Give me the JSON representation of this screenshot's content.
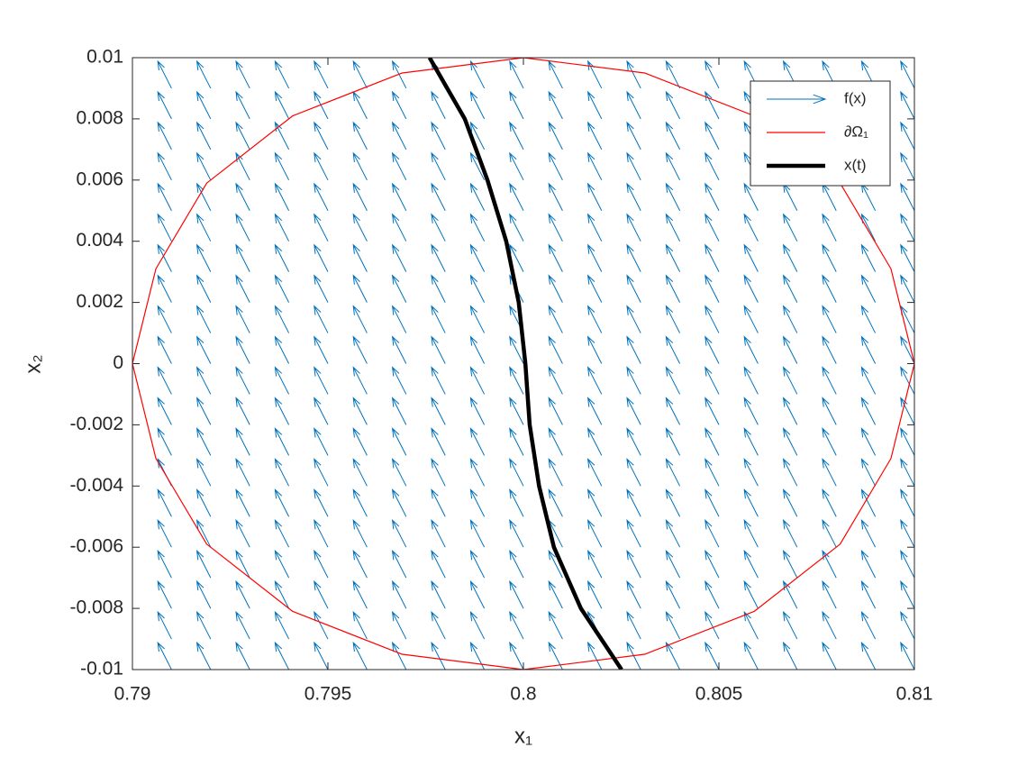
{
  "chart_data": {
    "type": "quiver",
    "xlabel": "x₁",
    "ylabel": "x₂",
    "xlim": [
      0.79,
      0.81
    ],
    "ylim": [
      -0.01,
      0.01
    ],
    "xticks": [
      0.79,
      0.795,
      0.8,
      0.805,
      0.81
    ],
    "yticks": [
      -0.01,
      -0.008,
      -0.006,
      -0.004,
      -0.002,
      0,
      0.002,
      0.004,
      0.006,
      0.008,
      0.01
    ],
    "legend": "upper right",
    "series": [
      {
        "name": "f(x)",
        "type": "quiver",
        "color": "#0072bd",
        "x": [
          0.79,
          0.791,
          0.792,
          0.793,
          0.794,
          0.795,
          0.796,
          0.797,
          0.798,
          0.799,
          0.8,
          0.801,
          0.802,
          0.803,
          0.804,
          0.805,
          0.806,
          0.807,
          0.808,
          0.809,
          0.81
        ],
        "y": [
          -0.01,
          -0.009,
          -0.008,
          -0.007,
          -0.006,
          -0.005,
          -0.004,
          -0.003,
          -0.002,
          -0.001,
          0,
          0.001,
          0.002,
          0.003,
          0.004,
          0.005,
          0.006,
          0.007,
          0.008,
          0.009,
          0.01
        ],
        "u": -0.00035,
        "v": 0.00088
      },
      {
        "name": "∂Ω₁",
        "type": "line",
        "color": "#ff0000",
        "width": 1.2,
        "x": [
          0.79,
          0.7906,
          0.7919,
          0.7941,
          0.7969,
          0.8,
          0.8031,
          0.8059,
          0.8081,
          0.8094,
          0.81,
          0.8094,
          0.8081,
          0.8059,
          0.8031,
          0.8,
          0.7969,
          0.7941,
          0.7919,
          0.7906,
          0.79
        ],
        "y": [
          0,
          0.0031,
          0.0059,
          0.0081,
          0.0095,
          0.01,
          0.0095,
          0.0081,
          0.0059,
          0.0031,
          0,
          -0.0031,
          -0.0059,
          -0.0081,
          -0.0095,
          -0.01,
          -0.0095,
          -0.0081,
          -0.0059,
          -0.0031,
          0
        ]
      },
      {
        "name": "x(t)",
        "type": "line",
        "color": "#000000",
        "width": 4.5,
        "x": [
          0.7976,
          0.7985,
          0.79908,
          0.79956,
          0.79988,
          0.80005,
          0.80016,
          0.8004,
          0.80078,
          0.80147,
          0.80251
        ],
        "y": [
          0.01,
          0.008,
          0.006,
          0.004,
          0.002,
          0,
          -0.002,
          -0.004,
          -0.006,
          -0.008,
          -0.01
        ]
      }
    ]
  }
}
